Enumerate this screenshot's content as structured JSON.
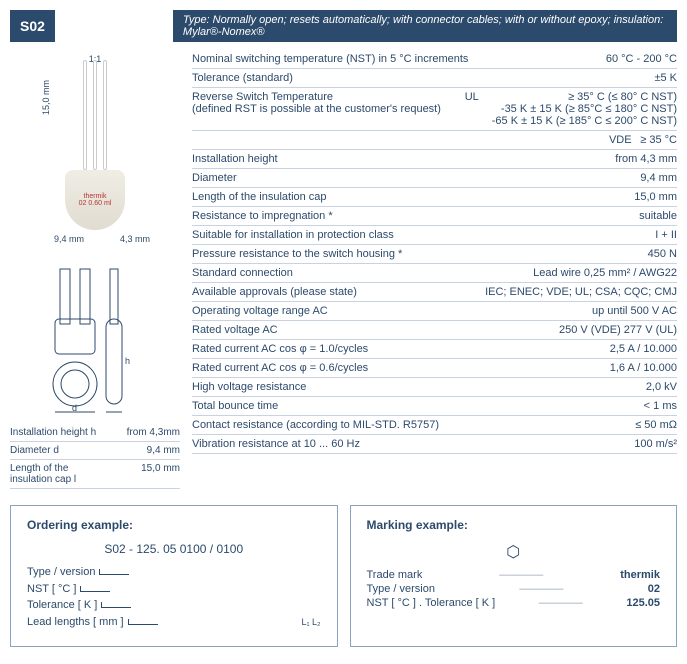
{
  "colors": {
    "brand": "#2c4a6b",
    "rule": "#c8d2e0",
    "bg": "#ffffff"
  },
  "badge": "S02",
  "type_banner": "Type: Normally open; resets automatically; with connector cables; with or without epoxy; insulation: Mylar®-Nomex®",
  "photo": {
    "scale": "1:1",
    "brand_text": "thermik",
    "model_text": "02 0.60 ml",
    "dim_vert": "15,0 mm",
    "dim_w1": "9,4 mm",
    "dim_w2": "4,3 mm"
  },
  "drawing_labels": {
    "d": "d",
    "h": "h"
  },
  "mini_table": [
    {
      "label": "Installation height h",
      "value": "from 4,3mm"
    },
    {
      "label": "Diameter d",
      "value": "9,4 mm"
    },
    {
      "label": "Length of the\ninsulation cap l",
      "value": "15,0 mm"
    }
  ],
  "specs": [
    {
      "label": "Nominal switching temperature (NST) in 5 °C increments",
      "mid": "",
      "value": "60 °C - 200 °C"
    },
    {
      "label": "Tolerance (standard)",
      "mid": "",
      "value": "±5 K"
    },
    {
      "label": "Reverse Switch Temperature\n(defined RST is possible at the customer's request)",
      "mid": "UL",
      "value": "≥ 35° C (≤ 80° C NST)\n-35 K ± 15 K (≥ 85°C ≤ 180° C NST)\n-65 K ± 15 K (≥ 185° C ≤ 200° C NST)"
    },
    {
      "label": "",
      "mid": "VDE",
      "value": "≥ 35 °C"
    },
    {
      "label": "Installation height",
      "mid": "",
      "value": "from 4,3 mm"
    },
    {
      "label": "Diameter",
      "mid": "",
      "value": "9,4 mm"
    },
    {
      "label": "Length of the insulation cap",
      "mid": "",
      "value": "15,0 mm"
    },
    {
      "label": "Resistance to impregnation *",
      "mid": "",
      "value": "suitable"
    },
    {
      "label": "Suitable for installation in protection class",
      "mid": "",
      "value": "I + II"
    },
    {
      "label": "Pressure resistance to the switch housing *",
      "mid": "",
      "value": "450 N"
    },
    {
      "label": "Standard connection",
      "mid": "",
      "value": "Lead wire 0,25 mm² / AWG22"
    },
    {
      "label": "Available approvals (please state)",
      "mid": "",
      "value": "IEC; ENEC; VDE; UL; CSA; CQC; CMJ"
    },
    {
      "label": "Operating voltage range AC",
      "mid": "",
      "value": "up until 500 V AC"
    },
    {
      "label": "Rated voltage AC",
      "mid": "",
      "value": "250 V (VDE) 277 V (UL)"
    },
    {
      "label": "Rated current AC cos φ = 1.0/cycles",
      "mid": "",
      "value": "2,5 A / 10.000"
    },
    {
      "label": "Rated current AC cos φ = 0.6/cycles",
      "mid": "",
      "value": "1,6 A / 10.000"
    },
    {
      "label": "High voltage resistance",
      "mid": "",
      "value": "2,0 kV"
    },
    {
      "label": "Total bounce time",
      "mid": "",
      "value": "< 1 ms"
    },
    {
      "label": "Contact resistance (according to MIL-STD. R5757)",
      "mid": "",
      "value": "≤ 50 mΩ"
    },
    {
      "label": "Vibration resistance at 10 ... 60 Hz",
      "mid": "",
      "value": "100 m/s²"
    }
  ],
  "ordering": {
    "title": "Ordering example:",
    "code": "S02 - 125. 05 0100 / 0100",
    "lines": [
      "Type / version",
      "NST [ °C ]",
      "Tolerance [ K ]",
      "Lead lengths [ mm ]"
    ],
    "sub": {
      "l1": "L₁",
      "l2": "L₂"
    }
  },
  "marking": {
    "title": "Marking example:",
    "rows": [
      {
        "label": "Trade mark",
        "value": "thermik"
      },
      {
        "label": "Type / version",
        "value": "02"
      },
      {
        "label": "NST [ °C ] . Tolerance [ K ]",
        "value": "125.05"
      }
    ]
  }
}
